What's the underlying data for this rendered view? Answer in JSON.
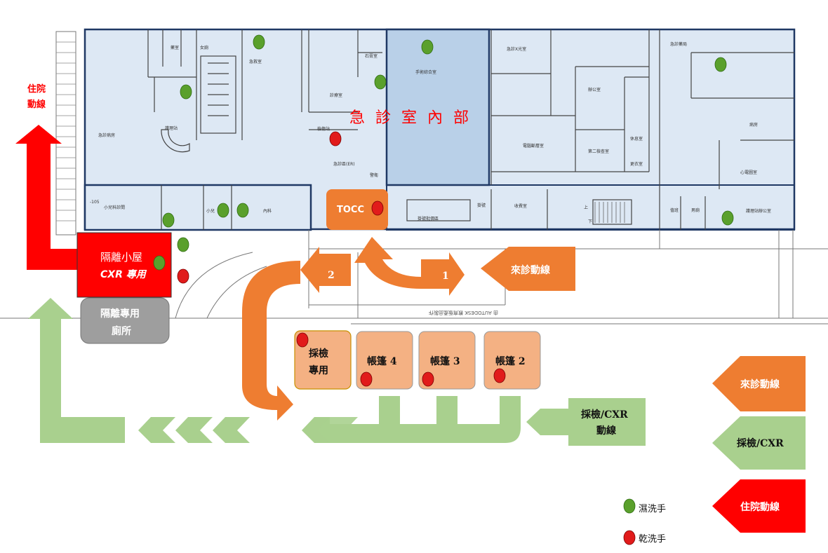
{
  "header": {
    "er_interior": "急 診 室 內 部"
  },
  "rooms": {
    "tocc": "TOCC",
    "isolation_hut_1": "隔離小屋",
    "isolation_hut_2": "CXR 專用",
    "isolation_toilet_1": "隔離專用",
    "isolation_toilet_2": "廁所",
    "sampling_1": "採檢",
    "sampling_2": "專用",
    "tent4": "帳篷 4",
    "tent3": "帳篷 3",
    "tent2": "帳篷 2"
  },
  "flows": {
    "admission_1": "住院",
    "admission_2": "動線",
    "step1": "1",
    "step2": "2",
    "visit_flow": "來診動線",
    "sampling_flow_1": "採檢/CXR",
    "sampling_flow_2": "動線"
  },
  "legend": {
    "visit": "來診動線",
    "sampling": "採檢/CXR",
    "admission": "住院動線",
    "wet_wash": "濕洗手",
    "dry_wash": "乾洗手"
  },
  "floor_labels": {
    "exam_room_1": "急救室",
    "exam_room_2": "診療室",
    "room_a": "藥室",
    "room_b": "女廁",
    "room_c": "石膏室",
    "nurse_station": "護理站",
    "observation": "急診病房",
    "triage": "檢傷站",
    "er_area": "急診區(ER)",
    "resus": "手術綜合室",
    "xray": "急診X光室",
    "office": "辦公室",
    "ct": "電腦斷層室",
    "second_exam": "第二檢查室",
    "rest": "休息室",
    "changing": "更衣室",
    "staff": "急診藥局",
    "ward": "病房",
    "ecg": "心電圖室",
    "nursing_office": "護理站辦公室",
    "pediatric": "小兒科診間",
    "pediatric_short": "小兒",
    "internal": "內科",
    "triage2": "掛號批價區",
    "cashier": "收費室",
    "upper": "上",
    "lower": "下",
    "staff_room": "值班",
    "male": "男廁",
    "female": "女廁",
    "tag": "-105",
    "security": "警衛",
    "ticket": "掛號",
    "autodesk": "由 AUTODESK 教育版產品製作"
  },
  "colors": {
    "orange": "#ee7d31",
    "green_arrow": "#a9d08e",
    "red": "#ff0000",
    "tent_fill": "#f4b183",
    "wet_dot": "#5aa02c",
    "dry_dot": "#e11b1b",
    "floor_fill": "#dde8f4",
    "floor_border": "#1f3864",
    "toilet_gray": "#9e9e9e"
  }
}
